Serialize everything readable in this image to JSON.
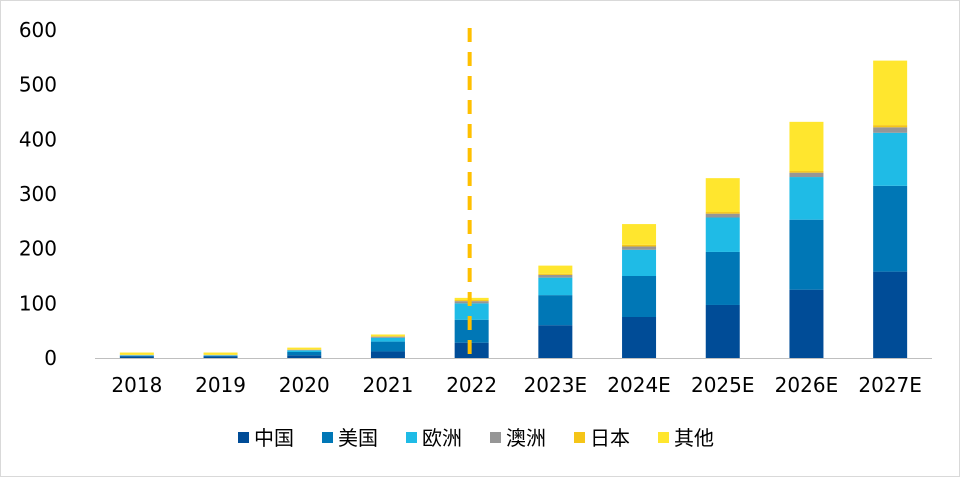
{
  "chart_data": {
    "type": "bar",
    "stacked": true,
    "title": "",
    "xlabel": "",
    "ylabel": "",
    "ylim": [
      0,
      600
    ],
    "yticks": [
      0,
      100,
      200,
      300,
      400,
      500,
      600
    ],
    "grid": false,
    "legend_position": "bottom",
    "categories": [
      "2018",
      "2019",
      "2020",
      "2021",
      "2022",
      "2023E",
      "2024E",
      "2025E",
      "2026E",
      "2027E"
    ],
    "divider_after_category": "2022",
    "divider_color": "#FFC000",
    "series": [
      {
        "name": "中国",
        "color": "#004C97",
        "values": [
          3,
          3,
          5,
          12,
          28,
          60,
          75,
          97,
          125,
          158
        ]
      },
      {
        "name": "美国",
        "color": "#0077B6",
        "values": [
          1,
          1,
          6,
          18,
          42,
          55,
          75,
          97,
          128,
          157
        ]
      },
      {
        "name": "欧洲",
        "color": "#1FBBE6",
        "values": [
          1,
          1,
          3,
          7,
          30,
          32,
          48,
          63,
          78,
          97
        ]
      },
      {
        "name": "澳洲",
        "color": "#969696",
        "values": [
          0.5,
          0.5,
          1,
          2,
          4,
          5,
          6,
          7,
          8,
          10
        ]
      },
      {
        "name": "日本",
        "color": "#F5C518",
        "values": [
          0.5,
          0.5,
          1,
          1,
          2,
          2,
          3,
          3,
          3,
          4
        ]
      },
      {
        "name": "其他",
        "color": "#FFE62E",
        "values": [
          4,
          4,
          3,
          3,
          4,
          15,
          38,
          62,
          90,
          118
        ]
      }
    ]
  }
}
